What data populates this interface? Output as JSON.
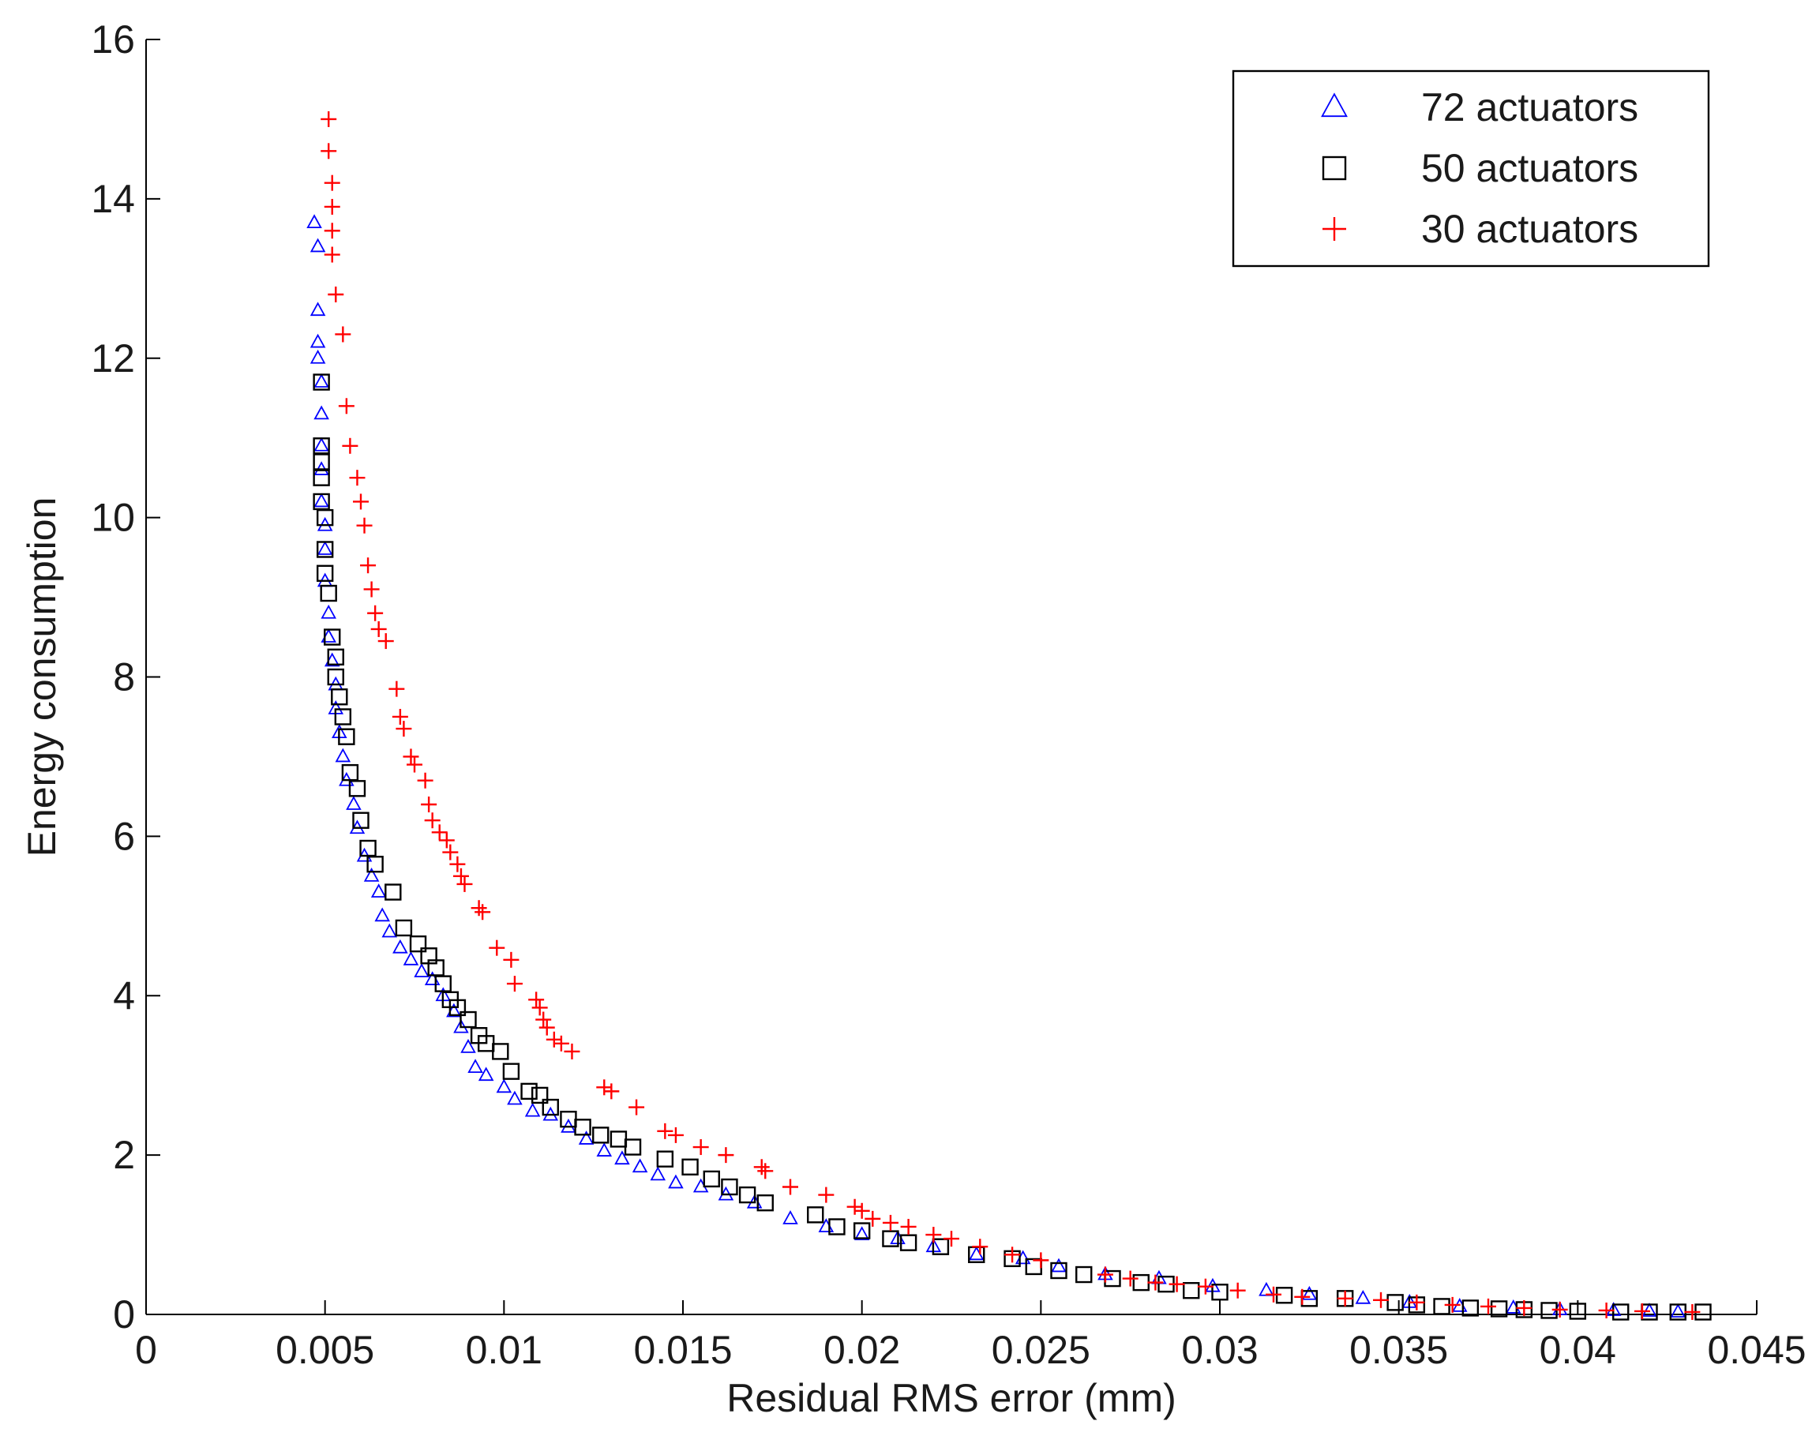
{
  "chart_data": {
    "type": "scatter",
    "title": "",
    "xlabel": "Residual RMS error (mm)",
    "ylabel": "Energy consumption",
    "xlim": [
      0,
      0.045
    ],
    "ylim": [
      0,
      16
    ],
    "xticks": [
      0,
      0.005,
      0.01,
      0.015,
      0.02,
      0.025,
      0.03,
      0.035,
      0.04,
      0.045
    ],
    "xtick_labels": [
      "0",
      "0.005",
      "0.01",
      "0.015",
      "0.02",
      "0.025",
      "0.03",
      "0.035",
      "0.04",
      "0.045"
    ],
    "yticks": [
      0,
      2,
      4,
      6,
      8,
      10,
      12,
      14,
      16
    ],
    "ytick_labels": [
      "0",
      "2",
      "4",
      "6",
      "8",
      "10",
      "12",
      "14",
      "16"
    ],
    "grid": false,
    "legend_position": "top-right",
    "series": [
      {
        "name": "72 actuators",
        "marker": "triangle",
        "color": "#0000ff",
        "points": [
          [
            0.0047,
            13.7
          ],
          [
            0.0048,
            13.4
          ],
          [
            0.0048,
            12.6
          ],
          [
            0.0048,
            12.2
          ],
          [
            0.0048,
            12.0
          ],
          [
            0.0049,
            11.7
          ],
          [
            0.0049,
            11.3
          ],
          [
            0.0049,
            10.9
          ],
          [
            0.0049,
            10.6
          ],
          [
            0.0049,
            10.2
          ],
          [
            0.005,
            9.9
          ],
          [
            0.005,
            9.6
          ],
          [
            0.005,
            9.2
          ],
          [
            0.0051,
            8.8
          ],
          [
            0.0051,
            8.5
          ],
          [
            0.0052,
            8.2
          ],
          [
            0.0053,
            7.9
          ],
          [
            0.0053,
            7.6
          ],
          [
            0.0054,
            7.3
          ],
          [
            0.0055,
            7.0
          ],
          [
            0.0056,
            6.7
          ],
          [
            0.0058,
            6.4
          ],
          [
            0.0059,
            6.1
          ],
          [
            0.0061,
            5.75
          ],
          [
            0.0063,
            5.5
          ],
          [
            0.0065,
            5.3
          ],
          [
            0.0066,
            5.0
          ],
          [
            0.0068,
            4.8
          ],
          [
            0.0071,
            4.6
          ],
          [
            0.0074,
            4.45
          ],
          [
            0.0077,
            4.3
          ],
          [
            0.008,
            4.2
          ],
          [
            0.0083,
            4.0
          ],
          [
            0.0086,
            3.8
          ],
          [
            0.0088,
            3.6
          ],
          [
            0.009,
            3.35
          ],
          [
            0.0092,
            3.1
          ],
          [
            0.0095,
            3.0
          ],
          [
            0.01,
            2.85
          ],
          [
            0.0103,
            2.7
          ],
          [
            0.0108,
            2.55
          ],
          [
            0.0113,
            2.5
          ],
          [
            0.0118,
            2.35
          ],
          [
            0.0123,
            2.2
          ],
          [
            0.0128,
            2.05
          ],
          [
            0.0133,
            1.95
          ],
          [
            0.0138,
            1.85
          ],
          [
            0.0143,
            1.75
          ],
          [
            0.0148,
            1.65
          ],
          [
            0.0155,
            1.6
          ],
          [
            0.0162,
            1.5
          ],
          [
            0.017,
            1.4
          ],
          [
            0.018,
            1.2
          ],
          [
            0.019,
            1.1
          ],
          [
            0.02,
            1.0
          ],
          [
            0.021,
            0.95
          ],
          [
            0.022,
            0.85
          ],
          [
            0.0232,
            0.75
          ],
          [
            0.0245,
            0.7
          ],
          [
            0.0255,
            0.6
          ],
          [
            0.0268,
            0.5
          ],
          [
            0.0283,
            0.45
          ],
          [
            0.0298,
            0.35
          ],
          [
            0.0313,
            0.3
          ],
          [
            0.0325,
            0.25
          ],
          [
            0.034,
            0.2
          ],
          [
            0.0353,
            0.15
          ],
          [
            0.0367,
            0.1
          ],
          [
            0.0382,
            0.08
          ],
          [
            0.0395,
            0.06
          ],
          [
            0.041,
            0.05
          ],
          [
            0.042,
            0.04
          ],
          [
            0.0428,
            0.03
          ]
        ]
      },
      {
        "name": "50 actuators",
        "marker": "square",
        "color": "#000000",
        "points": [
          [
            0.0049,
            11.7
          ],
          [
            0.0049,
            10.9
          ],
          [
            0.0049,
            10.7
          ],
          [
            0.0049,
            10.5
          ],
          [
            0.0049,
            10.2
          ],
          [
            0.005,
            10.0
          ],
          [
            0.005,
            9.6
          ],
          [
            0.005,
            9.3
          ],
          [
            0.0051,
            9.05
          ],
          [
            0.0052,
            8.5
          ],
          [
            0.0053,
            8.25
          ],
          [
            0.0053,
            8.0
          ],
          [
            0.0054,
            7.75
          ],
          [
            0.0055,
            7.5
          ],
          [
            0.0056,
            7.25
          ],
          [
            0.0057,
            6.8
          ],
          [
            0.0059,
            6.6
          ],
          [
            0.006,
            6.2
          ],
          [
            0.0062,
            5.85
          ],
          [
            0.0064,
            5.65
          ],
          [
            0.0069,
            5.3
          ],
          [
            0.0072,
            4.85
          ],
          [
            0.0076,
            4.65
          ],
          [
            0.0079,
            4.5
          ],
          [
            0.0081,
            4.35
          ],
          [
            0.0083,
            4.15
          ],
          [
            0.0085,
            3.95
          ],
          [
            0.0087,
            3.85
          ],
          [
            0.009,
            3.7
          ],
          [
            0.0093,
            3.5
          ],
          [
            0.0095,
            3.4
          ],
          [
            0.0099,
            3.3
          ],
          [
            0.0102,
            3.05
          ],
          [
            0.0107,
            2.8
          ],
          [
            0.011,
            2.75
          ],
          [
            0.0113,
            2.6
          ],
          [
            0.0118,
            2.45
          ],
          [
            0.0122,
            2.35
          ],
          [
            0.0127,
            2.25
          ],
          [
            0.0132,
            2.2
          ],
          [
            0.0136,
            2.1
          ],
          [
            0.0145,
            1.95
          ],
          [
            0.0152,
            1.85
          ],
          [
            0.0158,
            1.7
          ],
          [
            0.0163,
            1.6
          ],
          [
            0.0168,
            1.5
          ],
          [
            0.0173,
            1.4
          ],
          [
            0.0187,
            1.25
          ],
          [
            0.0193,
            1.1
          ],
          [
            0.02,
            1.05
          ],
          [
            0.0208,
            0.95
          ],
          [
            0.0213,
            0.9
          ],
          [
            0.0222,
            0.85
          ],
          [
            0.0232,
            0.75
          ],
          [
            0.0242,
            0.7
          ],
          [
            0.0248,
            0.6
          ],
          [
            0.0255,
            0.55
          ],
          [
            0.0262,
            0.5
          ],
          [
            0.027,
            0.45
          ],
          [
            0.0278,
            0.4
          ],
          [
            0.0285,
            0.38
          ],
          [
            0.0292,
            0.3
          ],
          [
            0.03,
            0.28
          ],
          [
            0.0318,
            0.24
          ],
          [
            0.0325,
            0.2
          ],
          [
            0.0335,
            0.2
          ],
          [
            0.0349,
            0.15
          ],
          [
            0.0355,
            0.12
          ],
          [
            0.0362,
            0.1
          ],
          [
            0.037,
            0.08
          ],
          [
            0.0378,
            0.07
          ],
          [
            0.0385,
            0.06
          ],
          [
            0.0392,
            0.05
          ],
          [
            0.04,
            0.04
          ],
          [
            0.0412,
            0.03
          ],
          [
            0.042,
            0.03
          ],
          [
            0.0428,
            0.03
          ],
          [
            0.0435,
            0.03
          ]
        ]
      },
      {
        "name": "30 actuators",
        "marker": "plus",
        "color": "#ff0000",
        "points": [
          [
            0.0051,
            15.0
          ],
          [
            0.0051,
            14.6
          ],
          [
            0.0052,
            14.2
          ],
          [
            0.0052,
            13.9
          ],
          [
            0.0052,
            13.6
          ],
          [
            0.0052,
            13.3
          ],
          [
            0.0053,
            12.8
          ],
          [
            0.0055,
            12.3
          ],
          [
            0.0056,
            11.4
          ],
          [
            0.0057,
            10.9
          ],
          [
            0.0059,
            10.5
          ],
          [
            0.006,
            10.2
          ],
          [
            0.0061,
            9.9
          ],
          [
            0.0062,
            9.4
          ],
          [
            0.0063,
            9.1
          ],
          [
            0.0064,
            8.8
          ],
          [
            0.0065,
            8.6
          ],
          [
            0.0067,
            8.45
          ],
          [
            0.007,
            7.85
          ],
          [
            0.0071,
            7.5
          ],
          [
            0.0072,
            7.35
          ],
          [
            0.0074,
            7.0
          ],
          [
            0.0075,
            6.9
          ],
          [
            0.0078,
            6.7
          ],
          [
            0.0079,
            6.4
          ],
          [
            0.008,
            6.2
          ],
          [
            0.0082,
            6.05
          ],
          [
            0.0084,
            5.95
          ],
          [
            0.0085,
            5.8
          ],
          [
            0.0087,
            5.65
          ],
          [
            0.0088,
            5.5
          ],
          [
            0.0089,
            5.4
          ],
          [
            0.0093,
            5.1
          ],
          [
            0.0094,
            5.05
          ],
          [
            0.0098,
            4.6
          ],
          [
            0.0102,
            4.45
          ],
          [
            0.0103,
            4.15
          ],
          [
            0.0109,
            3.95
          ],
          [
            0.011,
            3.85
          ],
          [
            0.0111,
            3.7
          ],
          [
            0.0112,
            3.6
          ],
          [
            0.0114,
            3.45
          ],
          [
            0.0116,
            3.4
          ],
          [
            0.0119,
            3.3
          ],
          [
            0.0128,
            2.85
          ],
          [
            0.013,
            2.8
          ],
          [
            0.0137,
            2.6
          ],
          [
            0.0145,
            2.3
          ],
          [
            0.0148,
            2.25
          ],
          [
            0.0155,
            2.1
          ],
          [
            0.0162,
            2.0
          ],
          [
            0.0172,
            1.85
          ],
          [
            0.0173,
            1.8
          ],
          [
            0.018,
            1.6
          ],
          [
            0.019,
            1.5
          ],
          [
            0.0198,
            1.35
          ],
          [
            0.02,
            1.3
          ],
          [
            0.0203,
            1.2
          ],
          [
            0.0208,
            1.15
          ],
          [
            0.0213,
            1.1
          ],
          [
            0.022,
            1.0
          ],
          [
            0.0225,
            0.95
          ],
          [
            0.0233,
            0.85
          ],
          [
            0.0242,
            0.75
          ],
          [
            0.025,
            0.68
          ],
          [
            0.0268,
            0.5
          ],
          [
            0.0275,
            0.45
          ],
          [
            0.0282,
            0.4
          ],
          [
            0.0288,
            0.38
          ],
          [
            0.0296,
            0.35
          ],
          [
            0.0305,
            0.3
          ],
          [
            0.0315,
            0.25
          ],
          [
            0.0323,
            0.22
          ],
          [
            0.0335,
            0.2
          ],
          [
            0.0345,
            0.18
          ],
          [
            0.0355,
            0.15
          ],
          [
            0.0365,
            0.12
          ],
          [
            0.0375,
            0.1
          ],
          [
            0.0385,
            0.08
          ],
          [
            0.0395,
            0.06
          ],
          [
            0.0408,
            0.05
          ],
          [
            0.0418,
            0.04
          ],
          [
            0.0432,
            0.03
          ]
        ]
      }
    ]
  }
}
